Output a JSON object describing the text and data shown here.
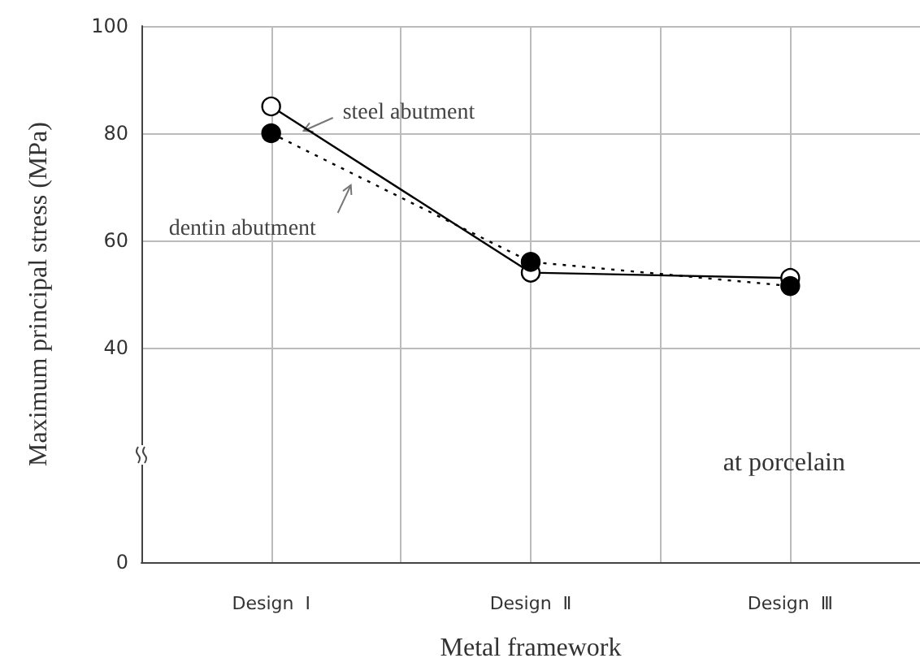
{
  "chart_data": {
    "type": "line",
    "xlabel": "Metal framework",
    "ylabel": "Maximum principal stress (MPa)",
    "categories": [
      "Design  Ⅰ",
      "Design  Ⅱ",
      "Design  Ⅲ"
    ],
    "series": [
      {
        "name": "steel abutment",
        "color": "#000000",
        "line_style": "solid",
        "values": [
          85,
          54,
          53
        ]
      },
      {
        "name": "dentin abutment",
        "color": "#000000",
        "line_style": "dotted",
        "values": [
          80,
          56,
          51.5
        ]
      }
    ],
    "ylim": [
      0,
      100
    ],
    "yticks": [
      0,
      40,
      60,
      80,
      100
    ],
    "annotations": [
      "at porcelain"
    ],
    "marker": "circle",
    "grid": true,
    "legend": false
  }
}
